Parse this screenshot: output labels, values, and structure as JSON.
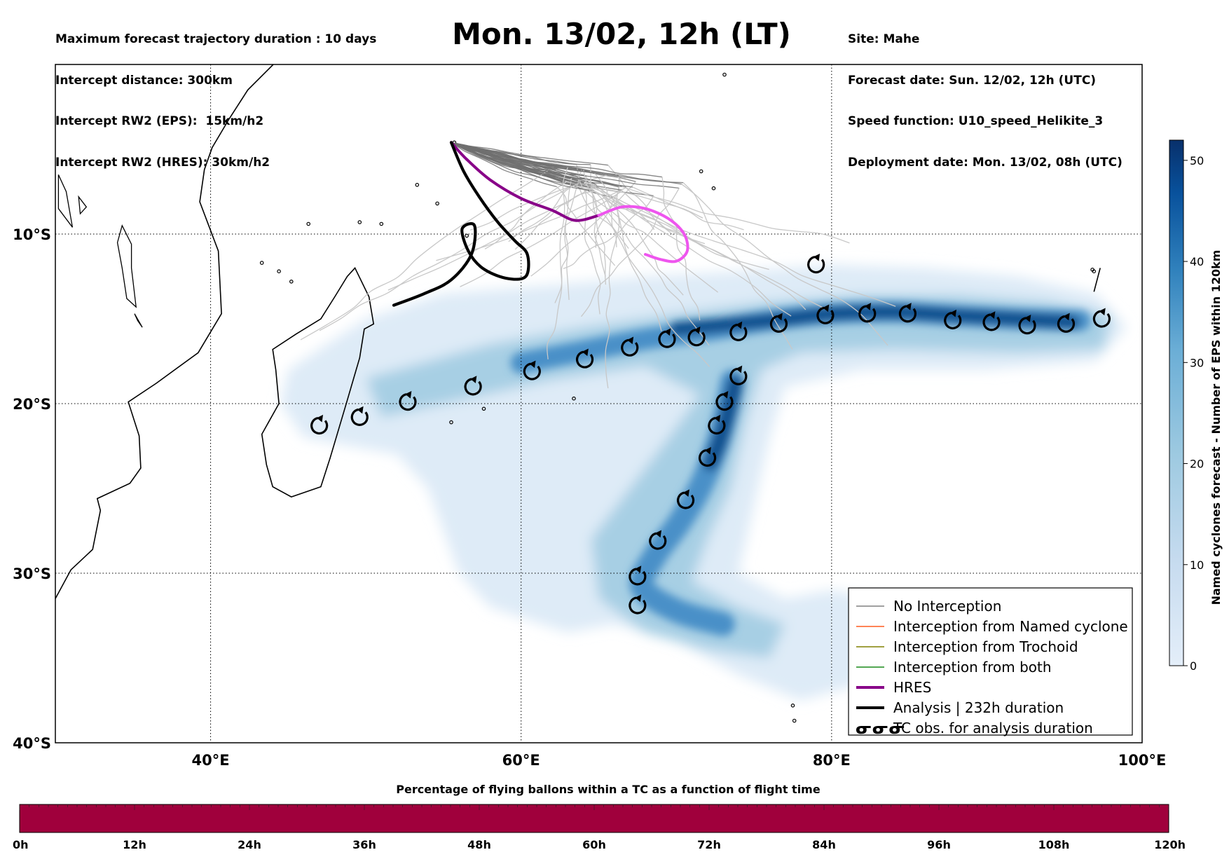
{
  "header_left": [
    "Maximum forecast trajectory duration : 10 days",
    "Intercept distance: 300km",
    "Intercept RW2 (EPS):  15km/h2",
    "Intercept RW2 (HRES): 30km/h2"
  ],
  "title": "Mon. 13/02, 12h (LT)",
  "header_right": [
    "Site: Mahe",
    "Forecast date: Sun. 12/02, 12h (UTC)",
    "Speed function: U10_speed_Helikite_3",
    "Deployment date: Mon. 13/02, 08h (UTC)"
  ],
  "map": {
    "lon_range": [
      30,
      100
    ],
    "lat_range": [
      -40,
      0
    ],
    "lat_ticks": [
      {
        "value": -10,
        "label": "10°S"
      },
      {
        "value": -20,
        "label": "20°S"
      },
      {
        "value": -30,
        "label": "30°S"
      },
      {
        "value": -40,
        "label": "40°S"
      }
    ],
    "lon_ticks": [
      {
        "value": 40,
        "label": "40°E"
      },
      {
        "value": 60,
        "label": "60°E"
      },
      {
        "value": 80,
        "label": "80°E"
      },
      {
        "value": 100,
        "label": "100°E"
      }
    ],
    "grid": "dotted",
    "launch_site": {
      "name": "Mahe",
      "lon": 55.5,
      "lat": -4.6
    }
  },
  "hres_track": [
    [
      55.5,
      -4.6
    ],
    [
      56.5,
      -5.6
    ],
    [
      58,
      -6.8
    ],
    [
      60,
      -7.9
    ],
    [
      62,
      -8.6
    ],
    [
      63.5,
      -9.2
    ],
    [
      65,
      -8.9
    ],
    [
      66.5,
      -8.4
    ],
    [
      68,
      -8.5
    ],
    [
      69.5,
      -9.1
    ],
    [
      70.5,
      -10
    ],
    [
      70.7,
      -11
    ],
    [
      70,
      -11.6
    ],
    [
      69,
      -11.5
    ],
    [
      68,
      -11.2
    ]
  ],
  "analysis_track": [
    [
      55.5,
      -4.6
    ],
    [
      56.3,
      -6.3
    ],
    [
      57.3,
      -7.8
    ],
    [
      58.5,
      -9.3
    ],
    [
      59.6,
      -10.4
    ],
    [
      60.4,
      -11.2
    ],
    [
      60.3,
      -12.5
    ],
    [
      59,
      -12.6
    ],
    [
      57.5,
      -12
    ],
    [
      56.6,
      -11
    ],
    [
      56.2,
      -9.7
    ],
    [
      57,
      -9.5
    ],
    [
      56.8,
      -11.2
    ],
    [
      55.5,
      -12.7
    ],
    [
      53.8,
      -13.5
    ],
    [
      51.8,
      -14.2
    ]
  ],
  "tc_obs": [
    {
      "lon": 47,
      "lat": -21.3
    },
    {
      "lon": 49.6,
      "lat": -20.8
    },
    {
      "lon": 52.7,
      "lat": -19.9
    },
    {
      "lon": 56.9,
      "lat": -19
    },
    {
      "lon": 60.7,
      "lat": -18.1
    },
    {
      "lon": 64.1,
      "lat": -17.4
    },
    {
      "lon": 67,
      "lat": -16.7
    },
    {
      "lon": 69.4,
      "lat": -16.2
    },
    {
      "lon": 71.3,
      "lat": -16.1
    },
    {
      "lon": 74,
      "lat": -15.8
    },
    {
      "lon": 76.6,
      "lat": -15.3
    },
    {
      "lon": 79.6,
      "lat": -14.8
    },
    {
      "lon": 82.3,
      "lat": -14.7
    },
    {
      "lon": 84.9,
      "lat": -14.7
    },
    {
      "lon": 87.8,
      "lat": -15.1
    },
    {
      "lon": 90.3,
      "lat": -15.2
    },
    {
      "lon": 92.6,
      "lat": -15.4
    },
    {
      "lon": 95.1,
      "lat": -15.3
    },
    {
      "lon": 97.4,
      "lat": -15
    },
    {
      "lon": 79,
      "lat": -11.8
    },
    {
      "lon": 74,
      "lat": -18.4
    },
    {
      "lon": 73.1,
      "lat": -19.9
    },
    {
      "lon": 72.6,
      "lat": -21.3
    },
    {
      "lon": 72,
      "lat": -23.2
    },
    {
      "lon": 70.6,
      "lat": -25.7
    },
    {
      "lon": 68.8,
      "lat": -28.1
    },
    {
      "lon": 67.5,
      "lat": -30.2
    },
    {
      "lon": 67.5,
      "lat": -31.9
    }
  ],
  "legend": {
    "placement": "lower-right",
    "entries": [
      {
        "label": "No Interception",
        "color": "#808080",
        "style": "thin-line"
      },
      {
        "label": "Interception from Named cyclone",
        "color": "#ff5a1f",
        "style": "thin-line"
      },
      {
        "label": "Interception from Trochoid",
        "color": "#808000",
        "style": "thin-line"
      },
      {
        "label": "Interception from both",
        "color": "#1a8a1a",
        "style": "thin-line"
      },
      {
        "label": "HRES",
        "color": "#880088",
        "style": "thick-line"
      },
      {
        "label": "Analysis | 232h duration",
        "color": "#000000",
        "style": "thick-line"
      },
      {
        "label": "TC obs. for analysis duration",
        "color": "#000000",
        "style": "tc-symbol",
        "symbol": "ᓂᓂᓂ"
      }
    ]
  },
  "colorbar": {
    "label": "Named cyclones forecast - Number of EPS within 120km",
    "min": 0,
    "max": 52,
    "ticks": [
      "0",
      "10",
      "20",
      "30",
      "40",
      "50"
    ],
    "colors": [
      "#e4eef9",
      "#c6dbef",
      "#9ecae1",
      "#6baed6",
      "#3182bd",
      "#08519c",
      "#08306b"
    ]
  },
  "bottom_bar": {
    "title": "Percentage of flying ballons within a TC as a function of flight time",
    "ticks": [
      "0h",
      "12h",
      "24h",
      "36h",
      "48h",
      "60h",
      "72h",
      "84h",
      "96h",
      "108h",
      "120h"
    ],
    "fill_color": "#a0003c",
    "value": 0
  },
  "colors": {
    "hres": "#880088",
    "hres_later": "#ee55ee",
    "analysis": "#000000",
    "eps_early": "#707070",
    "eps_late": "#c8c8c8"
  }
}
